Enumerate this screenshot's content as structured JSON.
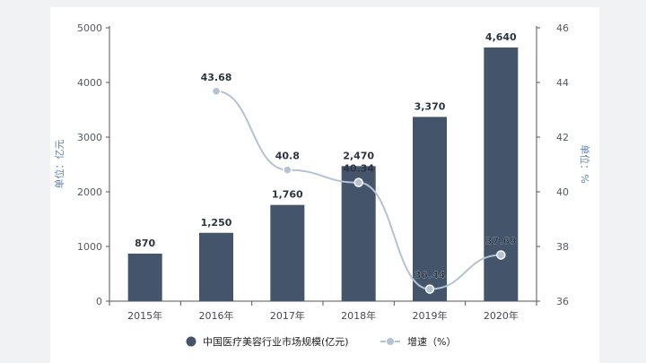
{
  "chart_data": {
    "type": "bar",
    "categories": [
      "2015年",
      "2016年",
      "2017年",
      "2018年",
      "2019年",
      "2020年"
    ],
    "series": [
      {
        "name": "中国医疗美容行业市场规模(亿元)",
        "kind": "bar",
        "axis": "left",
        "values": [
          870,
          1250,
          1760,
          2470,
          3370,
          4640
        ],
        "labels": [
          "870",
          "1,250",
          "1,760",
          "2,470",
          "3,370",
          "4,640"
        ],
        "color": "#44546a"
      },
      {
        "name": "增速（%）",
        "kind": "line",
        "axis": "right",
        "values": [
          null,
          43.68,
          40.8,
          40.34,
          36.44,
          37.69
        ],
        "labels": [
          "",
          "43.68",
          "40.8",
          "40.34",
          "36.44",
          "37.69"
        ],
        "color": "#b4c2d3"
      }
    ],
    "ylabel": "单位：亿元",
    "y2label": "单位：%",
    "ylim": [
      0,
      5000
    ],
    "y2lim": [
      36,
      46
    ],
    "yticks": [
      "0",
      "1000",
      "2000",
      "3000",
      "4000",
      "5000"
    ],
    "y2ticks": [
      "36",
      "38",
      "40",
      "42",
      "44",
      "46"
    ],
    "grid": false,
    "legend_position": "bottom"
  }
}
